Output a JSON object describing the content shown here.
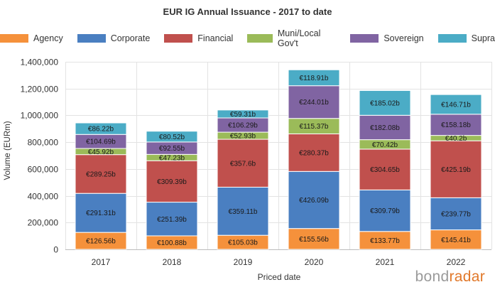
{
  "chart_data": {
    "type": "bar",
    "stacked": true,
    "title": "EUR IG Annual Issuance - 2017 to date",
    "xlabel": "Priced date",
    "ylabel": "Volume (EURm)",
    "ylim": [
      0,
      1400000
    ],
    "yticks": [
      0,
      200000,
      400000,
      600000,
      800000,
      1000000,
      1200000,
      1400000
    ],
    "ytick_labels": [
      "0",
      "200,000",
      "400,000",
      "600,000",
      "800,000",
      "1,000,000",
      "1,200,000",
      "1,400,000"
    ],
    "grid": true,
    "legend_position": "top",
    "categories": [
      "2017",
      "2018",
      "2019",
      "2020",
      "2021",
      "2022"
    ],
    "series": [
      {
        "name": "Agency",
        "color": "#f5913b",
        "values": [
          126560,
          100880,
          105030,
          155560,
          133770,
          145410
        ],
        "labels": [
          "€126.56b",
          "€100.88b",
          "€105.03b",
          "€155.56b",
          "€133.77b",
          "€145.41b"
        ]
      },
      {
        "name": "Corporate",
        "color": "#4a7fc1",
        "values": [
          291310,
          251390,
          359110,
          426090,
          309790,
          239770
        ],
        "labels": [
          "€291.31b",
          "€251.39b",
          "€359.11b",
          "€426.09b",
          "€309.79b",
          "€239.77b"
        ]
      },
      {
        "name": "Financial",
        "color": "#c0504d",
        "values": [
          289250,
          309390,
          357600,
          280370,
          304650,
          425190
        ],
        "labels": [
          "€289.25b",
          "€309.39b",
          "€357.6b",
          "€280.37b",
          "€304.65b",
          "€425.19b"
        ]
      },
      {
        "name": "Muni/Local Gov't",
        "color": "#9bbb59",
        "values": [
          45920,
          47230,
          52930,
          115370,
          70420,
          40200
        ],
        "labels": [
          "€45.92b",
          "€47.23b",
          "€52.93b",
          "€115.37b",
          "€70.42b",
          "€40.2b"
        ]
      },
      {
        "name": "Sovereign",
        "color": "#8064a2",
        "values": [
          104690,
          92550,
          106290,
          244010,
          182080,
          158180
        ],
        "labels": [
          "€104.69b",
          "€92.55b",
          "€106.29b",
          "€244.01b",
          "€182.08b",
          "€158.18b"
        ]
      },
      {
        "name": "Supra",
        "color": "#4bacc6",
        "values": [
          86220,
          80520,
          59310,
          118910,
          185020,
          146710
        ],
        "labels": [
          "€86.22b",
          "€80.52b",
          "€59.31b",
          "€118.91b",
          "€185.02b",
          "€146.71b"
        ]
      }
    ]
  },
  "brand": {
    "part1": "bond",
    "part2": "radar"
  }
}
